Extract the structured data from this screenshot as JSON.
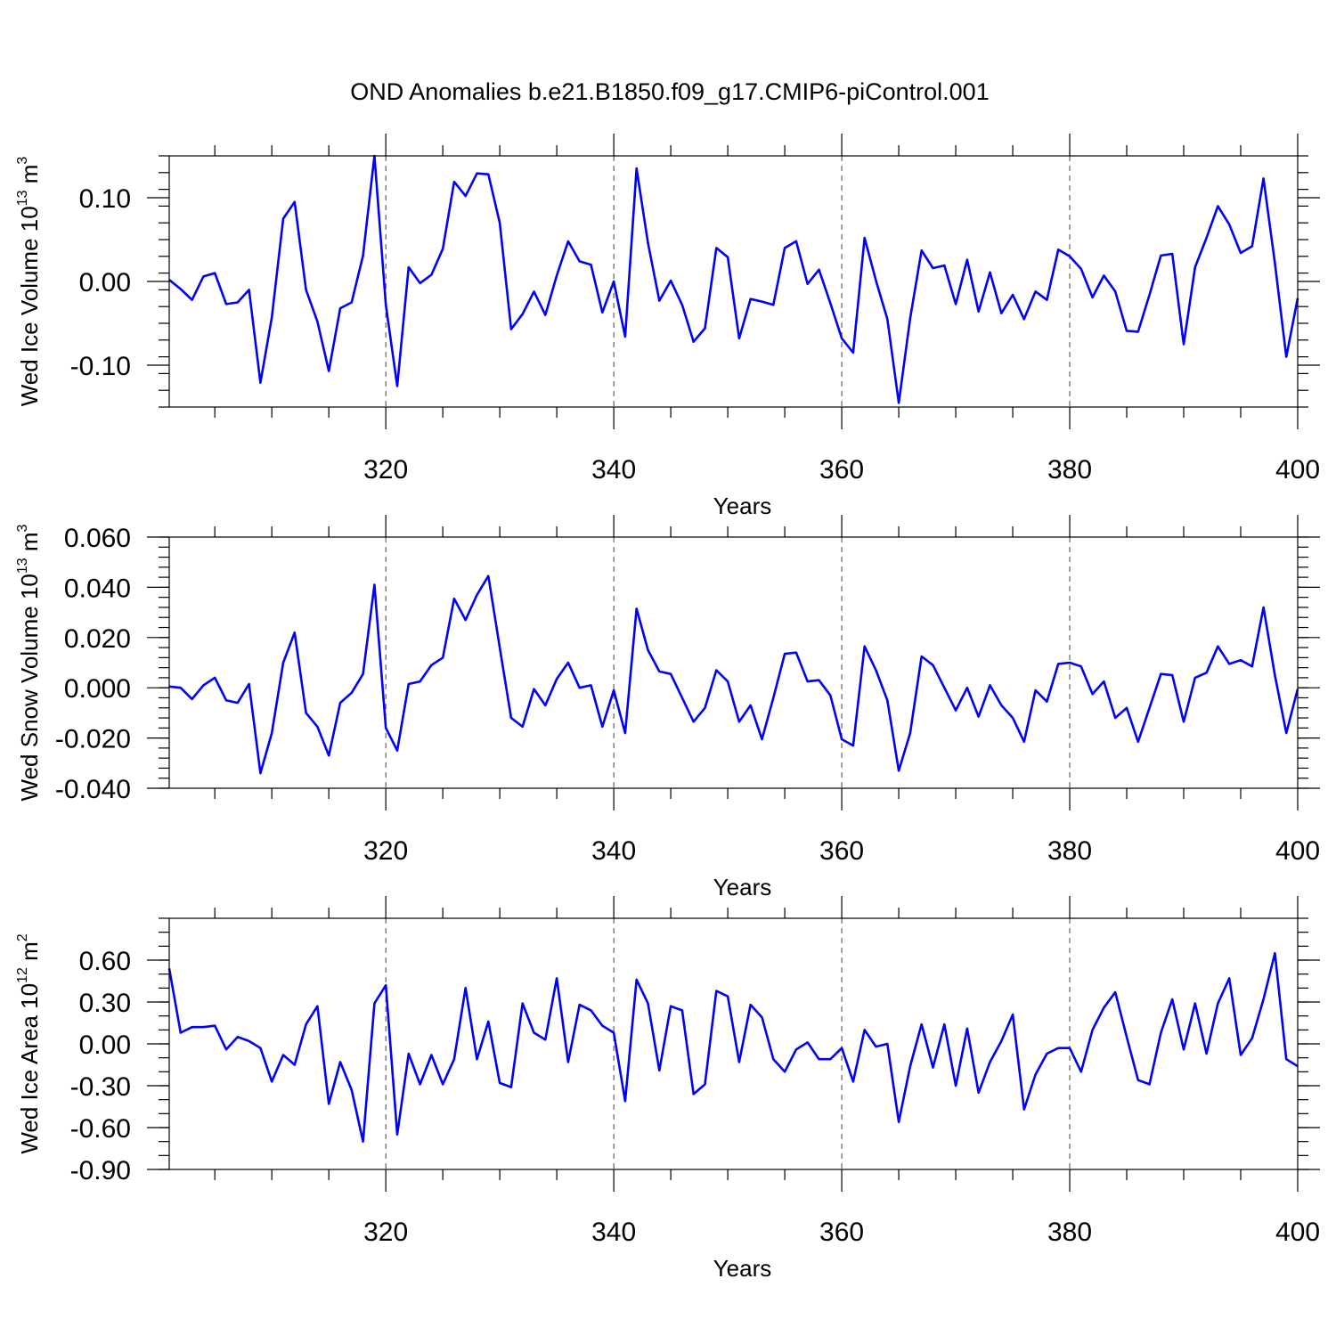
{
  "title": "OND Anomalies b.e21.B1850.f09_g17.CMIP6-piControl.001",
  "colors": {
    "series": "#0000ff",
    "axis": "#000000"
  },
  "chart_data": [
    {
      "type": "line",
      "name": "ice-volume",
      "ylabel_main": "Wed Ice Volume 10",
      "ylabel_exp": "13",
      "ylabel_unit": " m",
      "ylabel_unit_exp": "3",
      "xlabel": "Years",
      "xlim": [
        301,
        400
      ],
      "ylim": [
        -0.15,
        0.15
      ],
      "yticks": [
        -0.1,
        0.0,
        0.1
      ],
      "ytick_labels": [
        "-0.10",
        "0.00",
        "0.10"
      ],
      "yminor_step": 0.02,
      "xticks": [
        320,
        340,
        360,
        380,
        400
      ],
      "xtick_labels": [
        "320",
        "340",
        "360",
        "380",
        "400"
      ],
      "x_start": 301,
      "values": [
        0.002,
        -0.009,
        -0.022,
        0.006,
        0.01,
        -0.027,
        -0.025,
        -0.01,
        -0.121,
        -0.043,
        0.075,
        0.095,
        -0.01,
        -0.048,
        -0.107,
        -0.032,
        -0.025,
        0.031,
        0.15,
        -0.028,
        -0.125,
        0.017,
        -0.002,
        0.008,
        0.039,
        0.119,
        0.102,
        0.129,
        0.128,
        0.07,
        -0.057,
        -0.039,
        -0.012,
        -0.04,
        0.007,
        0.048,
        0.024,
        0.02,
        -0.037,
        0.0,
        -0.066,
        0.135,
        0.046,
        -0.023,
        0.001,
        -0.028,
        -0.072,
        -0.056,
        0.04,
        0.029,
        -0.068,
        -0.021,
        -0.024,
        -0.028,
        0.04,
        0.048,
        -0.003,
        0.014,
        -0.026,
        -0.068,
        -0.085,
        0.052,
        0.001,
        -0.045,
        -0.145,
        -0.044,
        0.037,
        0.016,
        0.019,
        -0.027,
        0.026,
        -0.036,
        0.011,
        -0.038,
        -0.016,
        -0.045,
        -0.012,
        -0.022,
        0.038,
        0.03,
        0.015,
        -0.019,
        0.007,
        -0.012,
        -0.059,
        -0.06,
        -0.016,
        0.031,
        0.033,
        -0.075,
        0.017,
        0.052,
        0.09,
        0.068,
        0.034,
        0.042,
        0.123,
        0.022,
        -0.09,
        -0.02
      ]
    },
    {
      "type": "line",
      "name": "snow-volume",
      "ylabel_main": "Wed Snow Volume 10",
      "ylabel_exp": "13",
      "ylabel_unit": " m",
      "ylabel_unit_exp": "3",
      "xlabel": "Years",
      "xlim": [
        301,
        400
      ],
      "ylim": [
        -0.04,
        0.06
      ],
      "yticks": [
        -0.04,
        -0.02,
        0.0,
        0.02,
        0.04,
        0.06
      ],
      "ytick_labels": [
        "-0.040",
        "-0.020",
        "0.000",
        "0.020",
        "0.040",
        "0.060"
      ],
      "yminor_step": 0.004,
      "xticks": [
        320,
        340,
        360,
        380,
        400
      ],
      "xtick_labels": [
        "320",
        "340",
        "360",
        "380",
        "400"
      ],
      "x_start": 301,
      "values": [
        0.0005,
        0.0,
        -0.0045,
        0.001,
        0.004,
        -0.005,
        -0.006,
        0.0015,
        -0.034,
        -0.018,
        0.01,
        0.022,
        -0.01,
        -0.0155,
        -0.027,
        -0.006,
        -0.002,
        0.0055,
        0.041,
        -0.016,
        -0.025,
        0.0015,
        0.0025,
        0.009,
        0.012,
        0.0355,
        0.027,
        0.037,
        0.0445,
        0.016,
        -0.012,
        -0.0155,
        -0.0005,
        -0.007,
        0.0035,
        0.01,
        0.0,
        0.001,
        -0.0155,
        -0.001,
        -0.018,
        0.0315,
        0.015,
        0.0065,
        0.0055,
        -0.004,
        -0.0135,
        -0.008,
        0.007,
        0.0025,
        -0.0135,
        -0.007,
        -0.0205,
        -0.004,
        0.0135,
        0.014,
        0.0025,
        0.003,
        -0.003,
        -0.0205,
        -0.023,
        0.0165,
        0.007,
        -0.005,
        -0.033,
        -0.018,
        0.0125,
        0.009,
        0.0,
        -0.009,
        0.0,
        -0.0115,
        0.001,
        -0.007,
        -0.012,
        -0.0215,
        -0.001,
        -0.0055,
        0.0095,
        0.01,
        0.0085,
        -0.0025,
        0.0025,
        -0.012,
        -0.008,
        -0.0215,
        -0.008,
        0.0055,
        0.005,
        -0.0135,
        0.004,
        0.006,
        0.0165,
        0.0095,
        0.011,
        0.0085,
        0.032,
        0.005,
        -0.018,
        -0.0005
      ]
    },
    {
      "type": "line",
      "name": "ice-area",
      "ylabel_main": "Wed Ice Area 10",
      "ylabel_exp": "12",
      "ylabel_unit": " m",
      "ylabel_unit_exp": "2",
      "xlabel": "Years",
      "xlim": [
        301,
        400
      ],
      "ylim": [
        -0.9,
        0.9
      ],
      "yticks": [
        -0.9,
        -0.6,
        -0.3,
        0.0,
        0.3,
        0.6
      ],
      "ytick_labels": [
        "-0.90",
        "-0.60",
        "-0.30",
        "0.00",
        "0.30",
        "0.60"
      ],
      "yminor_step": 0.1,
      "xticks": [
        320,
        340,
        360,
        380,
        400
      ],
      "xtick_labels": [
        "320",
        "340",
        "360",
        "380",
        "400"
      ],
      "x_start": 301,
      "values": [
        0.54,
        0.08,
        0.12,
        0.12,
        0.13,
        -0.04,
        0.05,
        0.02,
        -0.03,
        -0.27,
        -0.08,
        -0.15,
        0.14,
        0.27,
        -0.43,
        -0.13,
        -0.33,
        -0.7,
        0.29,
        0.42,
        -0.65,
        -0.07,
        -0.29,
        -0.08,
        -0.29,
        -0.11,
        0.4,
        -0.11,
        0.16,
        -0.28,
        -0.31,
        0.29,
        0.08,
        0.03,
        0.47,
        -0.13,
        0.28,
        0.24,
        0.13,
        0.08,
        -0.41,
        0.46,
        0.29,
        -0.19,
        0.27,
        0.24,
        -0.36,
        -0.29,
        0.38,
        0.34,
        -0.13,
        0.28,
        0.19,
        -0.11,
        -0.2,
        -0.04,
        0.01,
        -0.11,
        -0.11,
        -0.03,
        -0.27,
        0.1,
        -0.02,
        0.0,
        -0.56,
        -0.16,
        0.14,
        -0.17,
        0.14,
        -0.3,
        0.11,
        -0.35,
        -0.13,
        0.02,
        0.21,
        -0.47,
        -0.22,
        -0.07,
        -0.03,
        -0.03,
        -0.2,
        0.1,
        0.26,
        0.37,
        0.05,
        -0.26,
        -0.29,
        0.08,
        0.32,
        -0.04,
        0.29,
        -0.07,
        0.29,
        0.47,
        -0.08,
        0.04,
        0.32,
        0.65,
        -0.11,
        -0.16
      ]
    }
  ]
}
